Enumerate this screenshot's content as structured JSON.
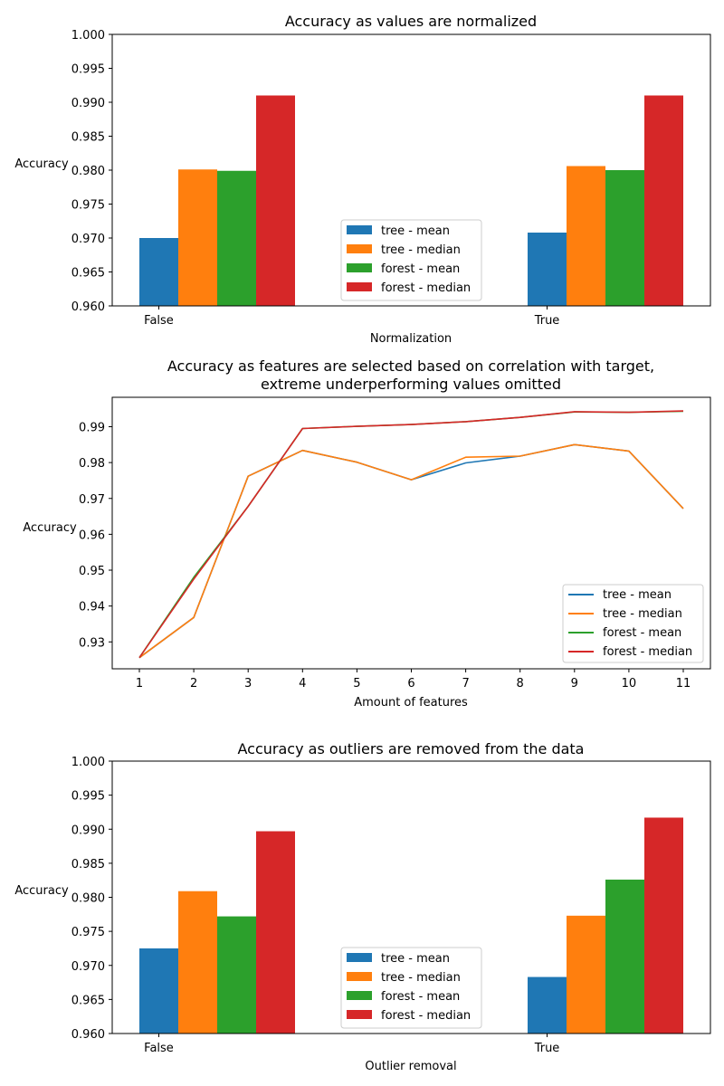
{
  "colors": {
    "tree_mean": "#1f77b4",
    "tree_median": "#ff7f0e",
    "forest_mean": "#2ca02c",
    "forest_median": "#d62728"
  },
  "chart_data": [
    {
      "type": "bar",
      "title": "Accuracy as values are normalized",
      "xlabel": "Normalization",
      "ylabel": "Accuracy",
      "categories": [
        "False",
        "True"
      ],
      "ylim": [
        0.96,
        1.0
      ],
      "yticks": [
        "0.960",
        "0.965",
        "0.970",
        "0.975",
        "0.980",
        "0.985",
        "0.990",
        "0.995",
        "1.000"
      ],
      "legend_position": "lower-center",
      "grid": false,
      "series": [
        {
          "name": "tree - mean",
          "color": "#1f77b4",
          "values": [
            0.97,
            0.9708
          ]
        },
        {
          "name": "tree - median",
          "color": "#ff7f0e",
          "values": [
            0.9801,
            0.9806
          ]
        },
        {
          "name": "forest - mean",
          "color": "#2ca02c",
          "values": [
            0.9799,
            0.98
          ]
        },
        {
          "name": "forest - median",
          "color": "#d62728",
          "values": [
            0.991,
            0.991
          ]
        }
      ]
    },
    {
      "type": "line",
      "title": "Accuracy as features are selected based on correlation with target,\nextreme underperforming values omitted",
      "title_lines": [
        "Accuracy as features are selected based on correlation with target,",
        "extreme underperforming values omitted"
      ],
      "xlabel": "Amount of features",
      "ylabel": "Accuracy",
      "x": [
        1,
        2,
        3,
        4,
        5,
        6,
        7,
        8,
        9,
        10,
        11
      ],
      "xticks": [
        "1",
        "2",
        "3",
        "4",
        "5",
        "6",
        "7",
        "8",
        "9",
        "10",
        "11"
      ],
      "ylim": [
        0.9225,
        0.9982
      ],
      "yticks": [
        "0.93",
        "0.94",
        "0.95",
        "0.96",
        "0.97",
        "0.98",
        "0.99"
      ],
      "ytick_values": [
        0.93,
        0.94,
        0.95,
        0.96,
        0.97,
        0.98,
        0.99
      ],
      "legend_position": "lower-right",
      "grid": false,
      "series": [
        {
          "name": "tree - mean",
          "color": "#1f77b4",
          "values": [
            0.9256,
            0.9368,
            0.9762,
            0.9834,
            0.9801,
            0.9752,
            0.9799,
            0.9818,
            0.985,
            0.9832,
            0.9672
          ]
        },
        {
          "name": "tree - median",
          "color": "#ff7f0e",
          "values": [
            0.9256,
            0.9368,
            0.9762,
            0.9834,
            0.9801,
            0.9752,
            0.9815,
            0.9818,
            0.985,
            0.9832,
            0.9672
          ]
        },
        {
          "name": "forest - mean",
          "color": "#2ca02c",
          "values": [
            0.9256,
            0.948,
            0.9678,
            0.9895,
            0.9901,
            0.9906,
            0.9914,
            0.9926,
            0.9941,
            0.994,
            0.9943
          ]
        },
        {
          "name": "forest - median",
          "color": "#d62728",
          "values": [
            0.9256,
            0.9475,
            0.9678,
            0.9895,
            0.9901,
            0.9906,
            0.9914,
            0.9926,
            0.9942,
            0.994,
            0.9944
          ]
        }
      ]
    },
    {
      "type": "bar",
      "title": "Accuracy as outliers are removed from the data",
      "xlabel": "Outlier removal",
      "ylabel": "Accuracy",
      "categories": [
        "False",
        "True"
      ],
      "ylim": [
        0.96,
        1.0
      ],
      "yticks": [
        "0.960",
        "0.965",
        "0.970",
        "0.975",
        "0.980",
        "0.985",
        "0.990",
        "0.995",
        "1.000"
      ],
      "legend_position": "lower-center",
      "grid": false,
      "series": [
        {
          "name": "tree - mean",
          "color": "#1f77b4",
          "values": [
            0.9725,
            0.9683
          ]
        },
        {
          "name": "tree - median",
          "color": "#ff7f0e",
          "values": [
            0.9809,
            0.9773
          ]
        },
        {
          "name": "forest - mean",
          "color": "#2ca02c",
          "values": [
            0.9772,
            0.9826
          ]
        },
        {
          "name": "forest - median",
          "color": "#d62728",
          "values": [
            0.9897,
            0.9917
          ]
        }
      ]
    }
  ]
}
